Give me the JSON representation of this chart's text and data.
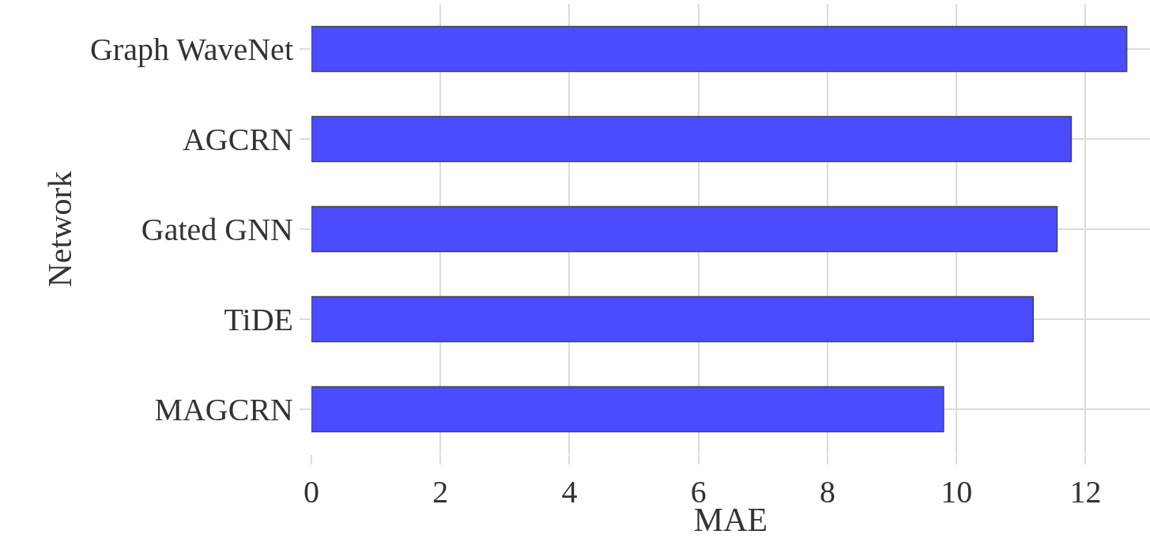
{
  "chart_data": {
    "type": "bar",
    "orientation": "horizontal",
    "categories": [
      "Graph WaveNet",
      "AGCRN",
      "Gated GNN",
      "TiDE",
      "MAGCRN"
    ],
    "values": [
      12.64,
      11.78,
      11.56,
      11.19,
      9.8
    ],
    "color": "#4b4bff",
    "xlabel": "MAE",
    "ylabel": "Network",
    "xlim": [
      0,
      13
    ],
    "xticks": [
      0,
      2,
      4,
      6,
      8,
      10,
      12
    ],
    "grid": true
  }
}
